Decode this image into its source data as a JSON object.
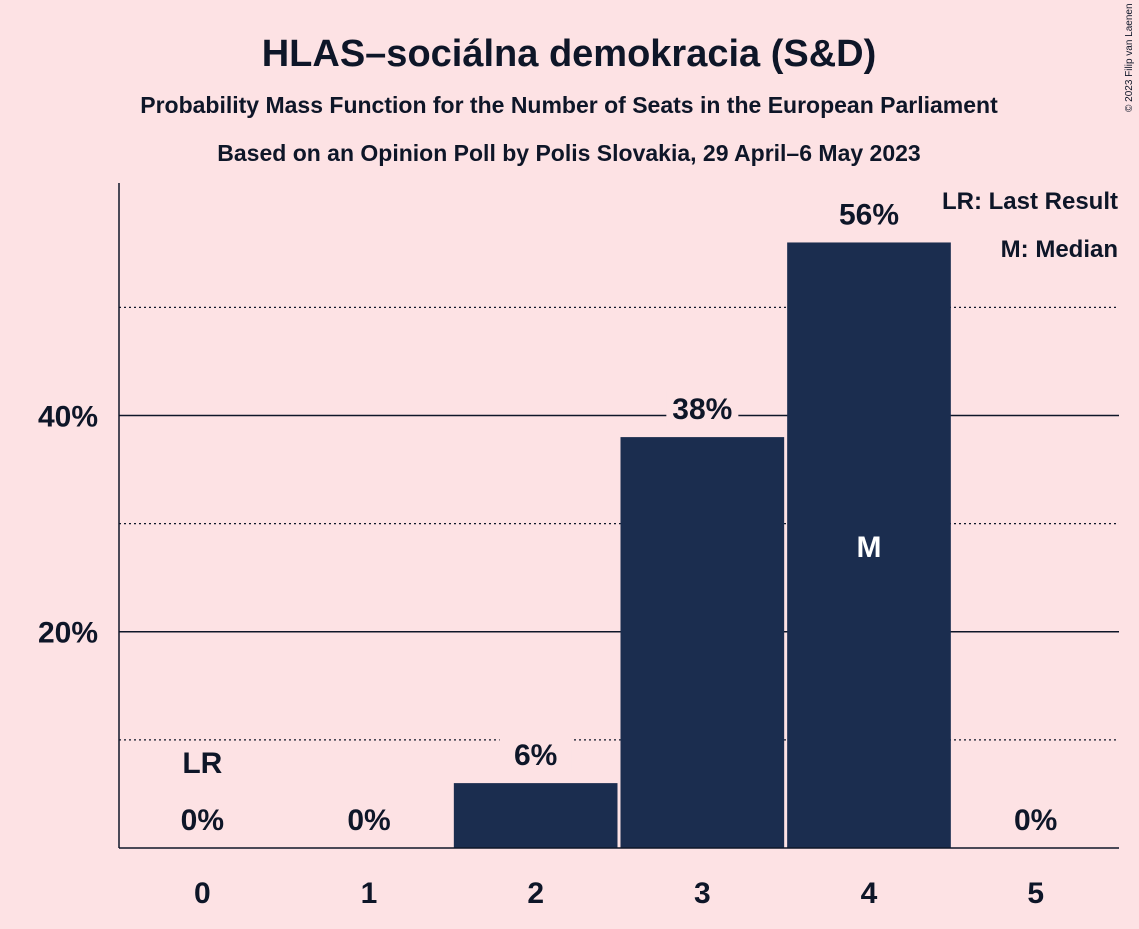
{
  "title": "HLAS–sociálna demokracia (S&D)",
  "subtitle": "Probability Mass Function for the Number of Seats in the European Parliament",
  "subtitle2": "Based on an Opinion Poll by Polis Slovakia, 29 April–6 May 2023",
  "copyright": "© 2023 Filip van Laenen",
  "legend": {
    "last_result": "LR: Last Result",
    "median": "M: Median"
  },
  "colors": {
    "bar": "#1B2D4F",
    "background": "#FDE2E4"
  },
  "chart_data": {
    "type": "bar",
    "categories": [
      "0",
      "1",
      "2",
      "3",
      "4",
      "5"
    ],
    "values": [
      0,
      0,
      6,
      38,
      56,
      0
    ],
    "value_labels": [
      "0%",
      "0%",
      "6%",
      "38%",
      "56%",
      "0%"
    ],
    "yticks": [
      {
        "value": 20,
        "label": "20%"
      },
      {
        "value": 40,
        "label": "40%"
      }
    ],
    "minor_gridlines": [
      10,
      30,
      50
    ],
    "ylim": [
      0,
      61.5
    ],
    "last_result_category": "0",
    "last_result_label": "LR",
    "median_category": "4",
    "median_label": "M",
    "xlabel": "",
    "ylabel": ""
  }
}
